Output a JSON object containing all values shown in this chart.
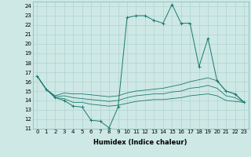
{
  "title": "",
  "xlabel": "Humidex (Indice chaleur)",
  "xlim": [
    -0.5,
    23.5
  ],
  "ylim": [
    11,
    24.5
  ],
  "yticks": [
    11,
    12,
    13,
    14,
    15,
    16,
    17,
    18,
    19,
    20,
    21,
    22,
    23,
    24
  ],
  "xticks": [
    0,
    1,
    2,
    3,
    4,
    5,
    6,
    7,
    8,
    9,
    10,
    11,
    12,
    13,
    14,
    15,
    16,
    17,
    18,
    19,
    20,
    21,
    22,
    23
  ],
  "bg_color": "#cde8e5",
  "grid_color": "#aad0cc",
  "line_color": "#1a7a6e",
  "lines": [
    {
      "x": [
        0,
        1,
        2,
        3,
        4,
        5,
        6,
        7,
        8,
        9,
        10,
        11,
        12,
        13,
        14,
        15,
        16,
        17,
        18,
        19,
        20,
        21,
        22,
        23
      ],
      "y": [
        16.6,
        15.2,
        14.3,
        14.0,
        13.4,
        13.3,
        11.9,
        11.8,
        11.1,
        13.3,
        22.8,
        23.0,
        23.0,
        22.5,
        22.2,
        24.2,
        22.2,
        22.2,
        17.6,
        20.6,
        16.1,
        15.0,
        14.7,
        13.8
      ],
      "marker": "+"
    },
    {
      "x": [
        0,
        1,
        2,
        3,
        4,
        5,
        6,
        7,
        8,
        9,
        10,
        11,
        12,
        13,
        14,
        15,
        16,
        17,
        18,
        19,
        20,
        21,
        22,
        23
      ],
      "y": [
        16.6,
        15.2,
        14.5,
        14.8,
        14.7,
        14.7,
        14.6,
        14.5,
        14.4,
        14.5,
        14.8,
        15.0,
        15.1,
        15.2,
        15.3,
        15.5,
        15.7,
        16.0,
        16.2,
        16.4,
        16.1,
        15.0,
        14.7,
        13.8
      ],
      "marker": null
    },
    {
      "x": [
        0,
        1,
        2,
        3,
        4,
        5,
        6,
        7,
        8,
        9,
        10,
        11,
        12,
        13,
        14,
        15,
        16,
        17,
        18,
        19,
        20,
        21,
        22,
        23
      ],
      "y": [
        16.6,
        15.2,
        14.3,
        14.2,
        13.8,
        13.8,
        13.6,
        13.5,
        13.4,
        13.5,
        13.7,
        13.9,
        14.0,
        14.1,
        14.1,
        14.2,
        14.3,
        14.5,
        14.6,
        14.7,
        14.5,
        14.0,
        13.9,
        13.8
      ],
      "marker": null
    },
    {
      "x": [
        0,
        1,
        2,
        3,
        4,
        5,
        6,
        7,
        8,
        9,
        10,
        11,
        12,
        13,
        14,
        15,
        16,
        17,
        18,
        19,
        20,
        21,
        22,
        23
      ],
      "y": [
        16.6,
        15.2,
        14.4,
        14.5,
        14.3,
        14.2,
        14.1,
        14.0,
        13.9,
        14.0,
        14.3,
        14.5,
        14.6,
        14.7,
        14.7,
        14.9,
        15.0,
        15.3,
        15.4,
        15.6,
        15.3,
        14.5,
        14.3,
        13.8
      ],
      "marker": null
    }
  ],
  "tick_fontsize": 5.0,
  "xlabel_fontsize": 6.0
}
